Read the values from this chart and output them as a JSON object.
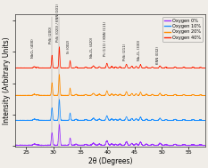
{
  "xlabel": "2θ (Degrees)",
  "ylabel": "Intensity (Arbitrary Units)",
  "xlim": [
    23,
    58
  ],
  "colors": {
    "0%": "#9B30FF",
    "10%": "#1E90FF",
    "20%": "#FF8C00",
    "40%": "#FF2000"
  },
  "legend_labels": [
    "Oxygen 0%",
    "Oxygen 10%",
    "Oxygen 20%",
    "Oxygen 40%"
  ],
  "legend_colors": [
    "#9B30FF",
    "#1E90FF",
    "#FF8C00",
    "#FF2000"
  ],
  "offsets": [
    0.0,
    0.2,
    0.4,
    0.62
  ],
  "background_color": "#f0ede8",
  "annotations": [
    {
      "label": "NbO₂ (400)",
      "x": 26.5
    },
    {
      "label": "PtSi (200)",
      "x": 29.75
    },
    {
      "label": "PtSi (020) / KNN (101)",
      "x": 31.1
    },
    {
      "label": "Si (002)",
      "x": 33.1
    },
    {
      "label": "Nb₂O₅ (420)",
      "x": 37.4
    },
    {
      "label": "Pt (111) / KNN (111)",
      "x": 39.9
    },
    {
      "label": "PtSi (211)",
      "x": 43.5
    },
    {
      "label": "Nb₂O₅ (330)",
      "x": 46.1
    },
    {
      "label": "KNN (002)",
      "x": 49.7
    }
  ],
  "strong_lines": [
    29.75,
    31.1
  ]
}
